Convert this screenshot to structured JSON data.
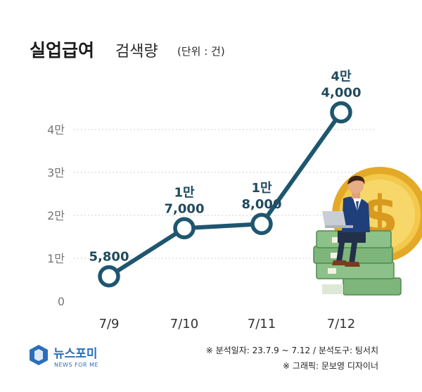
{
  "header": {
    "title_bold": "실업급여",
    "title_rest": "검색량",
    "unit": "(단위 : 건)"
  },
  "chart_data": {
    "type": "line",
    "categories": [
      "7/9",
      "7/10",
      "7/11",
      "7/12"
    ],
    "values": [
      5800,
      17000,
      18000,
      44000
    ],
    "data_labels": [
      {
        "line1": "",
        "line2": "5,800"
      },
      {
        "line1": "1만",
        "line2": "7,000"
      },
      {
        "line1": "1만",
        "line2": "8,000"
      },
      {
        "line1": "4만",
        "line2": "4,000"
      }
    ],
    "yticks": [
      {
        "value": 0,
        "label": "0"
      },
      {
        "value": 10000,
        "label": "1만"
      },
      {
        "value": 20000,
        "label": "2만"
      },
      {
        "value": 30000,
        "label": "3만"
      },
      {
        "value": 40000,
        "label": "4만"
      }
    ],
    "ylim": [
      0,
      40000
    ],
    "grid": true,
    "line_color": "#1e5670"
  },
  "footer": {
    "logo_text": "뉴스포미",
    "logo_sub": "NEWS FOR ME",
    "note1": "※ 분석일자: 23.7.9 ~ 7.12  / 분석도구: 팅서치",
    "note2": "※ 그래픽: 문보영 디자이너"
  },
  "colors": {
    "accent": "#1e5670",
    "label": "#204a5e",
    "coin": "#e8b93a",
    "money": "#6aa66a",
    "suit": "#1f3f7a"
  }
}
